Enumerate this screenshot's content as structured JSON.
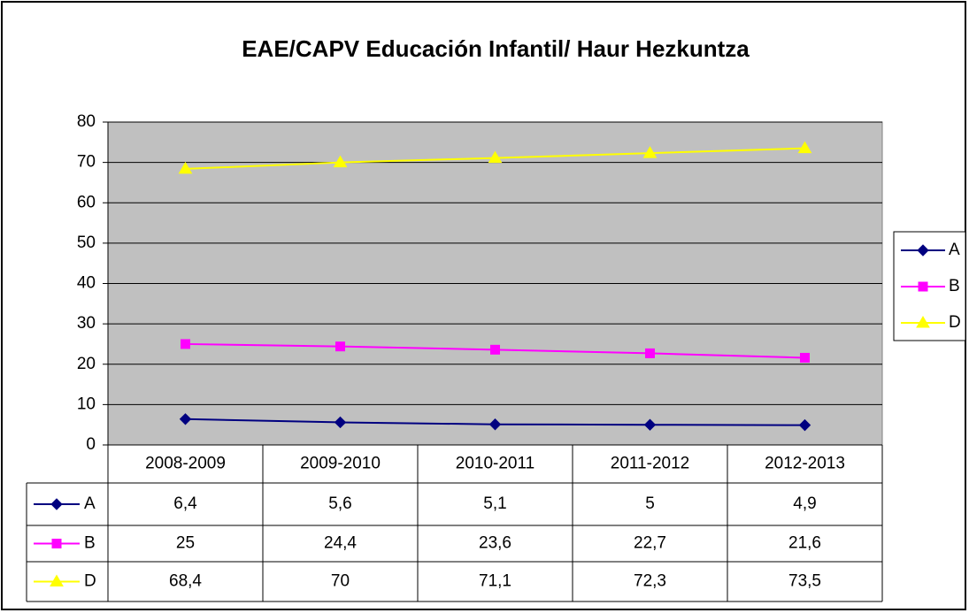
{
  "chart_data": {
    "type": "line",
    "title": "EAE/CAPV Educación Infantil/ Haur Hezkuntza",
    "categories": [
      "2008-2009",
      "2009-2010",
      "2010-2011",
      "2011-2012",
      "2012-2013"
    ],
    "series": [
      {
        "name": "A",
        "color": "#000080",
        "marker": "diamond",
        "values": [
          6.4,
          5.6,
          5.1,
          5,
          4.9
        ],
        "value_labels": [
          "6,4",
          "5,6",
          "5,1",
          "5",
          "4,9"
        ]
      },
      {
        "name": "B",
        "color": "#ff00ff",
        "marker": "square",
        "values": [
          25,
          24.4,
          23.6,
          22.7,
          21.6
        ],
        "value_labels": [
          "25",
          "24,4",
          "23,6",
          "22,7",
          "21,6"
        ]
      },
      {
        "name": "D",
        "color": "#ffff00",
        "marker": "triangle",
        "values": [
          68.4,
          70,
          71.1,
          72.3,
          73.5
        ],
        "value_labels": [
          "68,4",
          "70",
          "71,1",
          "72,3",
          "73,5"
        ]
      }
    ],
    "ylim": [
      0,
      80
    ],
    "yticks": [
      0,
      10,
      20,
      30,
      40,
      50,
      60,
      70,
      80
    ],
    "grid": true,
    "legend": "right",
    "plot_background": "#c0c0c0"
  }
}
